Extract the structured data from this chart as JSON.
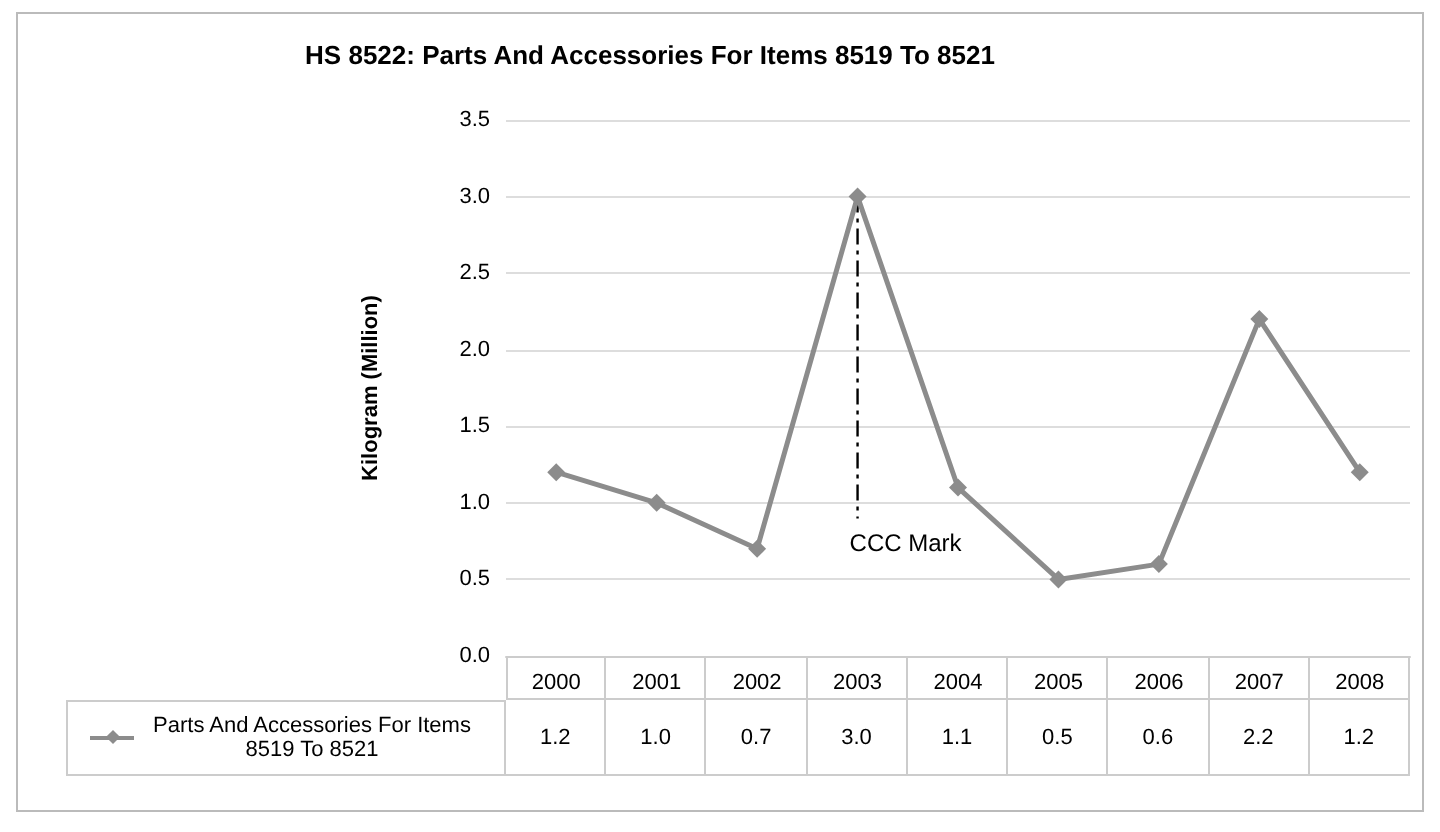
{
  "chart_data": {
    "type": "line",
    "title": "HS 8522: Parts And Accessories For Items 8519 To 8521",
    "ylabel": "Kilogram (Million)",
    "categories": [
      "2000",
      "2001",
      "2002",
      "2003",
      "2004",
      "2005",
      "2006",
      "2007",
      "2008"
    ],
    "series": [
      {
        "name": "Parts And Accessories For Items 8519 To 8521",
        "color": "#8c8c8c",
        "values": [
          1.2,
          1.0,
          0.7,
          3.0,
          1.1,
          0.5,
          0.6,
          2.2,
          1.2
        ],
        "value_labels": [
          "1.2",
          "1.0",
          "0.7",
          "3.0",
          "1.1",
          "0.5",
          "0.6",
          "2.2",
          "1.2"
        ]
      }
    ],
    "ylim": [
      0,
      3.5
    ],
    "yticks": [
      {
        "value": 0,
        "label": "0.0"
      },
      {
        "value": 0.5,
        "label": "0.5"
      },
      {
        "value": 1,
        "label": "1.0"
      },
      {
        "value": 1.5,
        "label": "1.5"
      },
      {
        "value": 2,
        "label": "2.0"
      },
      {
        "value": 2.5,
        "label": "2.5"
      },
      {
        "value": 3,
        "label": "3.0"
      },
      {
        "value": 3.5,
        "label": "3.5"
      }
    ],
    "ref_lines": [
      {
        "axis": "x",
        "value": "2003",
        "label": "CCC Mark",
        "color": "#000000",
        "line_style": "dashed"
      }
    ],
    "grid": "y",
    "legend": "bottom left",
    "marker": "diamond",
    "line_style": "solid"
  }
}
